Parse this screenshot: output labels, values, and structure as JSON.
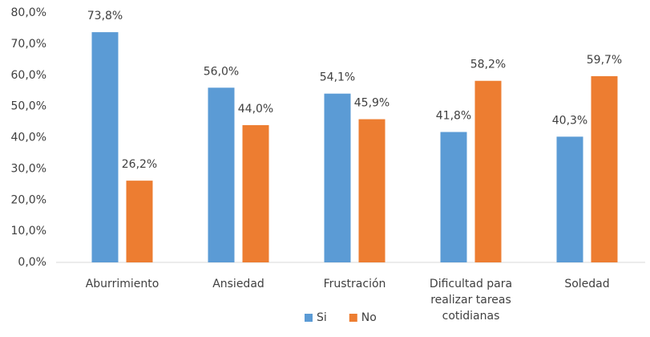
{
  "chart_data": {
    "type": "bar",
    "categories": [
      "Aburrimiento",
      "Ansiedad",
      "Frustración",
      "Dificultad para realizar tareas cotidianas",
      "Soledad"
    ],
    "series": [
      {
        "name": "Si",
        "color": "#5b9bd5",
        "values": [
          73.8,
          56.0,
          54.1,
          41.8,
          40.3
        ],
        "value_labels": [
          "73,8%",
          "56,0%",
          "54,1%",
          "41,8%",
          "40,3%"
        ]
      },
      {
        "name": "No",
        "color": "#ed7d31",
        "values": [
          26.2,
          44.0,
          45.9,
          58.2,
          59.7
        ],
        "value_labels": [
          "26,2%",
          "44,0%",
          "45,9%",
          "58,2%",
          "59,7%"
        ]
      }
    ],
    "ylim": [
      0,
      80
    ],
    "yticks": [
      {
        "value": 0,
        "label": "0,0%"
      },
      {
        "value": 10,
        "label": "10,0%"
      },
      {
        "value": 20,
        "label": "20,0%"
      },
      {
        "value": 30,
        "label": "30,0%"
      },
      {
        "value": 40,
        "label": "40,0%"
      },
      {
        "value": 50,
        "label": "50,0%"
      },
      {
        "value": 60,
        "label": "60,0%"
      },
      {
        "value": 70,
        "label": "70,0%"
      },
      {
        "value": 80,
        "label": "80,0%"
      }
    ],
    "grid": false,
    "legend": "bottom"
  }
}
